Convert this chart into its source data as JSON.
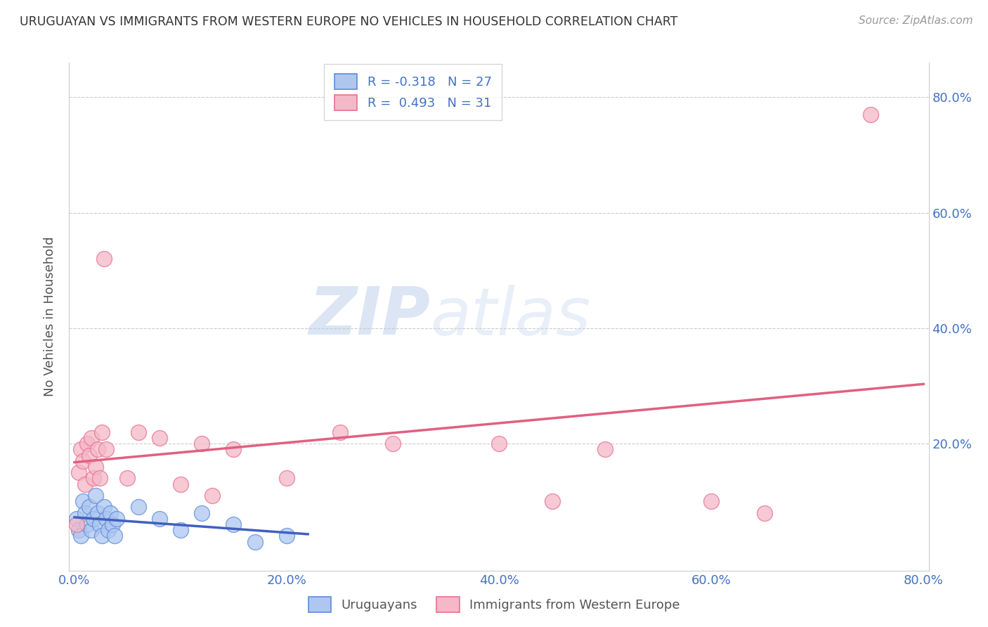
{
  "title": "URUGUAYAN VS IMMIGRANTS FROM WESTERN EUROPE NO VEHICLES IN HOUSEHOLD CORRELATION CHART",
  "source": "Source: ZipAtlas.com",
  "ylabel": "No Vehicles in Household",
  "xlim": [
    -0.005,
    0.805
  ],
  "ylim": [
    -0.02,
    0.86
  ],
  "xticks": [
    0.0,
    0.2,
    0.4,
    0.6,
    0.8
  ],
  "xtick_labels": [
    "0.0%",
    "20.0%",
    "40.0%",
    "60.0%",
    "80.0%"
  ],
  "yticks": [
    0.2,
    0.4,
    0.6,
    0.8
  ],
  "ytick_labels": [
    "20.0%",
    "40.0%",
    "60.0%",
    "80.0%"
  ],
  "blue_R": -0.318,
  "blue_N": 27,
  "pink_R": 0.493,
  "pink_N": 31,
  "blue_color": "#aec6f0",
  "pink_color": "#f4b8c8",
  "blue_edge_color": "#5b8dd9",
  "pink_edge_color": "#e87090",
  "blue_line_color": "#4060c0",
  "pink_line_color": "#e06080",
  "blue_scatter": [
    [
      0.002,
      0.07
    ],
    [
      0.004,
      0.05
    ],
    [
      0.006,
      0.04
    ],
    [
      0.008,
      0.1
    ],
    [
      0.01,
      0.08
    ],
    [
      0.012,
      0.06
    ],
    [
      0.014,
      0.09
    ],
    [
      0.016,
      0.05
    ],
    [
      0.018,
      0.07
    ],
    [
      0.02,
      0.11
    ],
    [
      0.022,
      0.08
    ],
    [
      0.024,
      0.06
    ],
    [
      0.026,
      0.04
    ],
    [
      0.028,
      0.09
    ],
    [
      0.03,
      0.07
    ],
    [
      0.032,
      0.05
    ],
    [
      0.034,
      0.08
    ],
    [
      0.036,
      0.06
    ],
    [
      0.038,
      0.04
    ],
    [
      0.04,
      0.07
    ],
    [
      0.06,
      0.09
    ],
    [
      0.08,
      0.07
    ],
    [
      0.1,
      0.05
    ],
    [
      0.12,
      0.08
    ],
    [
      0.15,
      0.06
    ],
    [
      0.17,
      0.03
    ],
    [
      0.2,
      0.04
    ]
  ],
  "pink_scatter": [
    [
      0.002,
      0.06
    ],
    [
      0.004,
      0.15
    ],
    [
      0.006,
      0.19
    ],
    [
      0.008,
      0.17
    ],
    [
      0.01,
      0.13
    ],
    [
      0.012,
      0.2
    ],
    [
      0.014,
      0.18
    ],
    [
      0.016,
      0.21
    ],
    [
      0.018,
      0.14
    ],
    [
      0.02,
      0.16
    ],
    [
      0.022,
      0.19
    ],
    [
      0.024,
      0.14
    ],
    [
      0.026,
      0.22
    ],
    [
      0.028,
      0.52
    ],
    [
      0.03,
      0.19
    ],
    [
      0.05,
      0.14
    ],
    [
      0.06,
      0.22
    ],
    [
      0.08,
      0.21
    ],
    [
      0.1,
      0.13
    ],
    [
      0.12,
      0.2
    ],
    [
      0.13,
      0.11
    ],
    [
      0.15,
      0.19
    ],
    [
      0.2,
      0.14
    ],
    [
      0.25,
      0.22
    ],
    [
      0.3,
      0.2
    ],
    [
      0.4,
      0.2
    ],
    [
      0.45,
      0.1
    ],
    [
      0.5,
      0.19
    ],
    [
      0.6,
      0.1
    ],
    [
      0.65,
      0.08
    ],
    [
      0.75,
      0.77
    ]
  ],
  "watermark_zip": "ZIP",
  "watermark_atlas": "atlas",
  "legend_labels": [
    "Uruguayans",
    "Immigrants from Western Europe"
  ],
  "background_color": "#ffffff",
  "grid_color": "#cccccc",
  "title_color": "#333333",
  "axis_label_color": "#555555",
  "tick_label_color": "#4472c4",
  "source_color": "#999999"
}
